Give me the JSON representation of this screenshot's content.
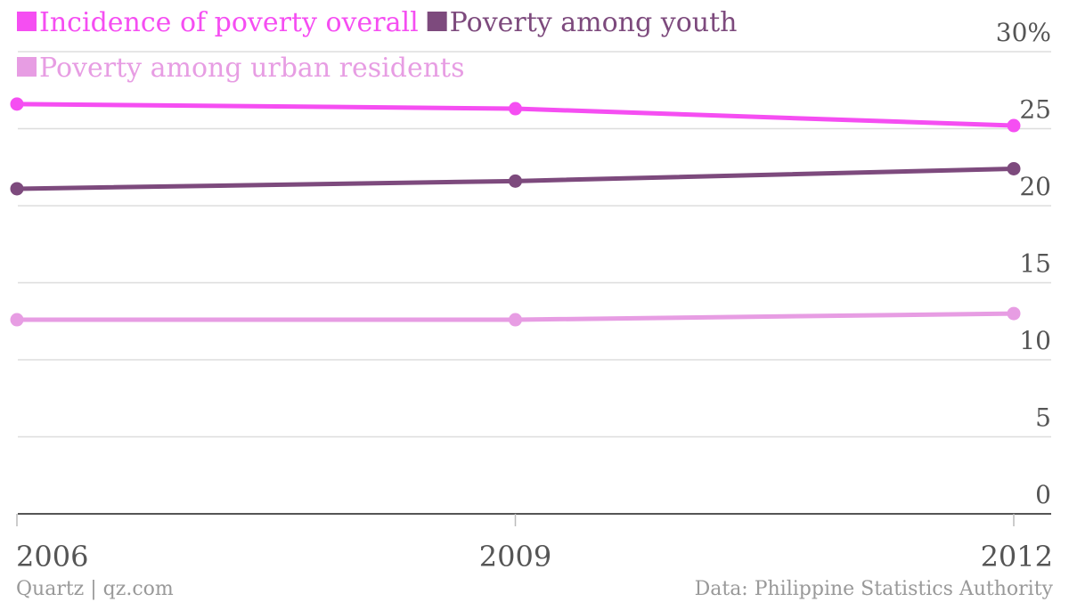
{
  "chart_data": {
    "type": "line",
    "categories": [
      "2006",
      "2009",
      "2012"
    ],
    "series": [
      {
        "name": "Incidence of poverty overall",
        "values": [
          26.6,
          26.3,
          25.2
        ],
        "color": "#f54ef2"
      },
      {
        "name": "Poverty among youth",
        "values": [
          21.1,
          21.6,
          22.4
        ],
        "color": "#7d4a7d"
      },
      {
        "name": "Poverty among urban residents",
        "values": [
          12.6,
          12.6,
          13.0
        ],
        "color": "#e79de3"
      }
    ],
    "y_ticks": [
      "0",
      "5",
      "10",
      "15",
      "20",
      "25",
      "30%"
    ],
    "ylim": [
      0,
      30
    ],
    "grid": true,
    "legend_position": "top-left",
    "axis_color": "#555555",
    "grid_color": "#dddddd"
  },
  "footer": {
    "source_left": "Quartz | qz.com",
    "source_right": "Data: Philippine Statistics Authority"
  }
}
